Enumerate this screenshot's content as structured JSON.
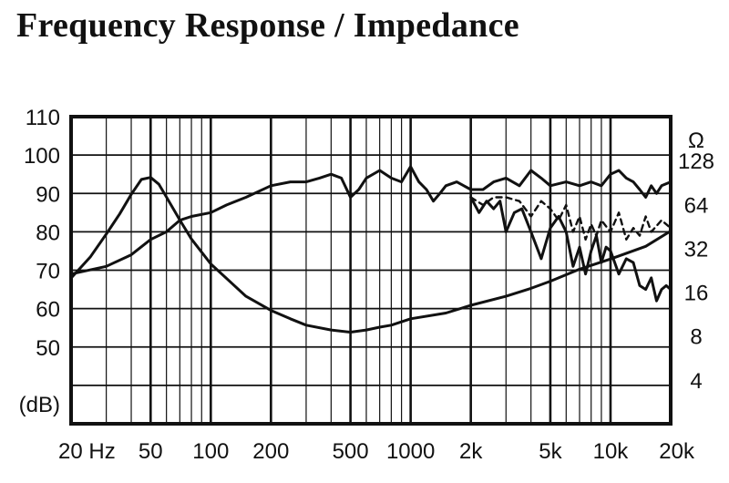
{
  "chart_data": {
    "type": "line",
    "title": "Frequency Response / Impedance",
    "x_scale": "log",
    "xlim": [
      20,
      20000
    ],
    "x_tick_labels": [
      {
        "v": 20,
        "label": "20 Hz"
      },
      {
        "v": 50,
        "label": "50"
      },
      {
        "v": 100,
        "label": "100"
      },
      {
        "v": 200,
        "label": "200"
      },
      {
        "v": 500,
        "label": "500"
      },
      {
        "v": 1000,
        "label": "1000"
      },
      {
        "v": 2000,
        "label": "2k"
      },
      {
        "v": 5000,
        "label": "5k"
      },
      {
        "v": 10000,
        "label": "10k"
      },
      {
        "v": 20000,
        "label": "20k"
      }
    ],
    "y_left": {
      "label": "(dB)",
      "ylim": [
        30,
        110
      ],
      "ticks": [
        50,
        60,
        70,
        80,
        90,
        100,
        110
      ]
    },
    "y_right": {
      "unit": "Ω",
      "scale": "log2",
      "ylim": [
        2,
        256
      ],
      "ticks": [
        4,
        8,
        16,
        32,
        64,
        128
      ]
    },
    "grid": true,
    "series": [
      {
        "axis": "left",
        "style": "solid",
        "points": [
          [
            20,
            69
          ],
          [
            30,
            71
          ],
          [
            40,
            74
          ],
          [
            50,
            78
          ],
          [
            60,
            80
          ],
          [
            70,
            83
          ],
          [
            80,
            84
          ],
          [
            100,
            85
          ],
          [
            120,
            87
          ],
          [
            150,
            89
          ],
          [
            200,
            92
          ],
          [
            250,
            93
          ],
          [
            300,
            93
          ],
          [
            350,
            94
          ],
          [
            400,
            95
          ],
          [
            450,
            94
          ],
          [
            500,
            89
          ],
          [
            550,
            91
          ],
          [
            600,
            94
          ],
          [
            700,
            96
          ],
          [
            800,
            94
          ],
          [
            900,
            93
          ],
          [
            1000,
            97
          ],
          [
            1100,
            93
          ],
          [
            1200,
            91
          ],
          [
            1300,
            88
          ],
          [
            1400,
            90
          ],
          [
            1500,
            92
          ],
          [
            1700,
            93
          ],
          [
            2000,
            91
          ],
          [
            2300,
            91
          ],
          [
            2600,
            93
          ],
          [
            3000,
            94
          ],
          [
            3500,
            92
          ],
          [
            4000,
            96
          ],
          [
            4500,
            94
          ],
          [
            5000,
            92
          ],
          [
            6000,
            93
          ],
          [
            7000,
            92
          ],
          [
            8000,
            93
          ],
          [
            9000,
            92
          ],
          [
            10000,
            95
          ],
          [
            11000,
            96
          ],
          [
            12000,
            94
          ],
          [
            13000,
            93
          ],
          [
            14000,
            91
          ],
          [
            15000,
            89
          ],
          [
            16000,
            92
          ],
          [
            17000,
            90
          ],
          [
            18000,
            92
          ],
          [
            20000,
            93
          ]
        ]
      },
      {
        "axis": "left",
        "style": "solid",
        "points": [
          [
            2000,
            89
          ],
          [
            2200,
            85
          ],
          [
            2400,
            88
          ],
          [
            2600,
            86
          ],
          [
            2800,
            88
          ],
          [
            3000,
            80
          ],
          [
            3300,
            85
          ],
          [
            3600,
            86
          ],
          [
            4000,
            80
          ],
          [
            4500,
            73
          ],
          [
            5000,
            81
          ],
          [
            5500,
            84
          ],
          [
            6000,
            80
          ],
          [
            6500,
            71
          ],
          [
            7000,
            76
          ],
          [
            7500,
            69
          ],
          [
            8000,
            75
          ],
          [
            8500,
            79
          ],
          [
            9000,
            72
          ],
          [
            9500,
            76
          ],
          [
            10000,
            75
          ],
          [
            11000,
            69
          ],
          [
            12000,
            73
          ],
          [
            13000,
            72
          ],
          [
            14000,
            66
          ],
          [
            15000,
            65
          ],
          [
            16000,
            68
          ],
          [
            17000,
            62
          ],
          [
            18000,
            65
          ],
          [
            19000,
            66
          ],
          [
            20000,
            65
          ]
        ]
      },
      {
        "axis": "left",
        "style": "dashed",
        "points": [
          [
            2000,
            89
          ],
          [
            2300,
            87
          ],
          [
            2600,
            89
          ],
          [
            3000,
            89
          ],
          [
            3500,
            88
          ],
          [
            4000,
            84
          ],
          [
            4500,
            88
          ],
          [
            5000,
            86
          ],
          [
            5500,
            83
          ],
          [
            6000,
            87
          ],
          [
            6500,
            80
          ],
          [
            7000,
            84
          ],
          [
            7500,
            78
          ],
          [
            8000,
            82
          ],
          [
            8500,
            79
          ],
          [
            9000,
            83
          ],
          [
            10000,
            80
          ],
          [
            11000,
            85
          ],
          [
            12000,
            78
          ],
          [
            13000,
            81
          ],
          [
            14000,
            79
          ],
          [
            15000,
            84
          ],
          [
            16000,
            80
          ],
          [
            18000,
            83
          ],
          [
            20000,
            81
          ]
        ]
      },
      {
        "axis": "right",
        "style": "solid",
        "points": [
          [
            20,
            20
          ],
          [
            25,
            28
          ],
          [
            30,
            40
          ],
          [
            35,
            55
          ],
          [
            40,
            75
          ],
          [
            45,
            95
          ],
          [
            50,
            98
          ],
          [
            55,
            88
          ],
          [
            60,
            72
          ],
          [
            70,
            50
          ],
          [
            80,
            37
          ],
          [
            100,
            25
          ],
          [
            150,
            15
          ],
          [
            200,
            12
          ],
          [
            250,
            10.5
          ],
          [
            300,
            9.5
          ],
          [
            400,
            8.8
          ],
          [
            500,
            8.5
          ],
          [
            600,
            8.8
          ],
          [
            700,
            9.2
          ],
          [
            800,
            9.5
          ],
          [
            1000,
            10.5
          ],
          [
            1500,
            11.5
          ],
          [
            2000,
            13
          ],
          [
            3000,
            15
          ],
          [
            4000,
            17
          ],
          [
            5000,
            19
          ],
          [
            7000,
            23
          ],
          [
            10000,
            27
          ],
          [
            15000,
            33
          ],
          [
            20000,
            42
          ]
        ]
      }
    ]
  }
}
